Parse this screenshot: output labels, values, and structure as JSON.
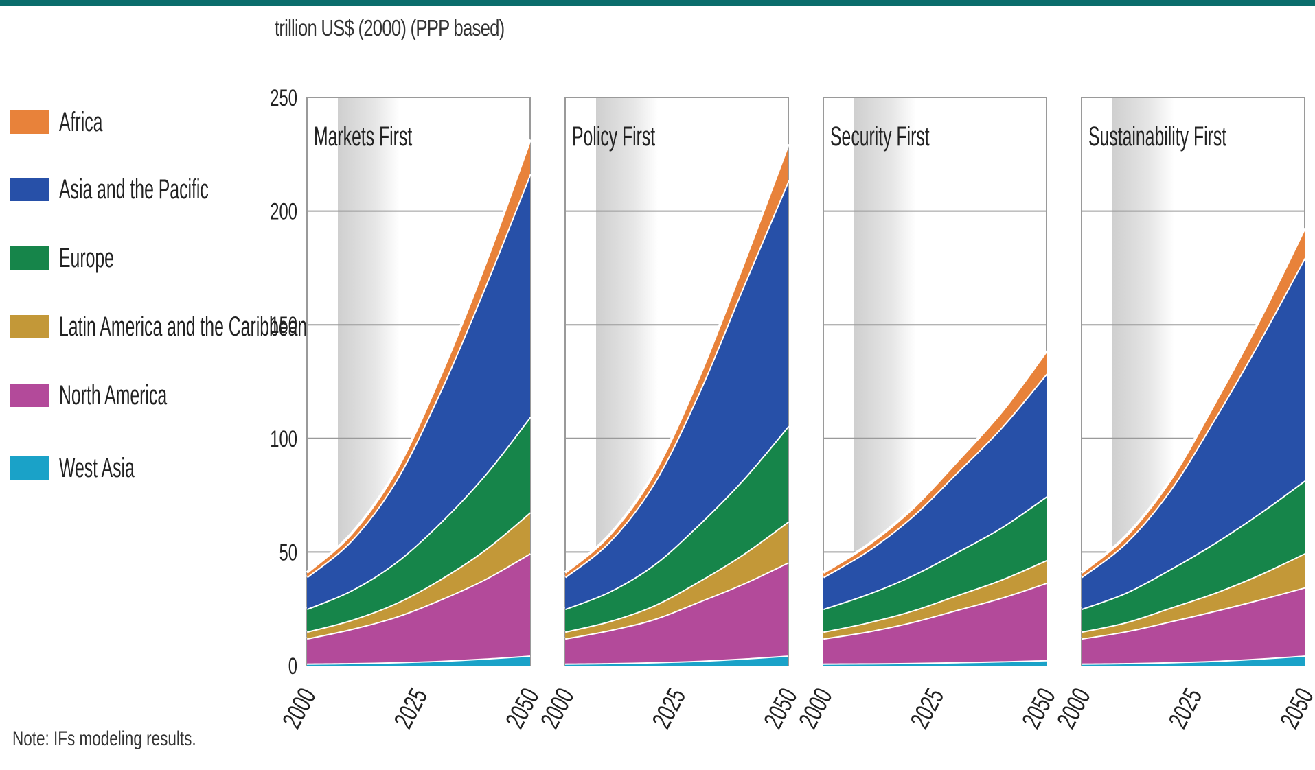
{
  "header": {
    "ylabel": "trillion US$ (2000) (PPP based)"
  },
  "legend": {
    "items": [
      {
        "label": "Africa",
        "color": "#e8823a"
      },
      {
        "label": "Asia and the Pacific",
        "color": "#2750a8"
      },
      {
        "label": "Europe",
        "color": "#16854a"
      },
      {
        "label": "Latin America and the Caribbean",
        "color": "#c39838"
      },
      {
        "label": "North America",
        "color": "#b34a9a"
      },
      {
        "label": "West Asia",
        "color": "#1aa2c8"
      }
    ]
  },
  "note": "Note: IFs modeling results.",
  "chart_data": [
    {
      "type": "area",
      "title": "Markets First",
      "x": [
        2000,
        2010,
        2020,
        2030,
        2040,
        2050
      ],
      "ylim": [
        0,
        250
      ],
      "yticks": [
        0,
        50,
        100,
        150,
        200,
        250
      ],
      "xticks": [
        "2000",
        "2025",
        "2050"
      ],
      "series": [
        {
          "name": "West Asia",
          "values": [
            1,
            1.2,
            1.6,
            2.2,
            3.2,
            4.5
          ]
        },
        {
          "name": "North America",
          "values": [
            11,
            15,
            20,
            27,
            35,
            45
          ]
        },
        {
          "name": "Latin America and the Caribbean",
          "values": [
            3,
            4,
            6,
            9,
            13,
            18
          ]
        },
        {
          "name": "Europe",
          "values": [
            10,
            13,
            18,
            25,
            33,
            42
          ]
        },
        {
          "name": "Asia and the Pacific",
          "values": [
            14,
            22,
            36,
            58,
            83,
            107
          ]
        },
        {
          "name": "Africa",
          "values": [
            2,
            3,
            4.5,
            7,
            10,
            15
          ]
        }
      ]
    },
    {
      "type": "area",
      "title": "Policy First",
      "x": [
        2000,
        2010,
        2020,
        2030,
        2040,
        2050
      ],
      "ylim": [
        0,
        250
      ],
      "yticks": [
        0,
        50,
        100,
        150,
        200,
        250
      ],
      "xticks": [
        "2000",
        "2025",
        "2050"
      ],
      "series": [
        {
          "name": "West Asia",
          "values": [
            1,
            1.2,
            1.6,
            2.2,
            3.2,
            4.5
          ]
        },
        {
          "name": "North America",
          "values": [
            11,
            14.5,
            19,
            26,
            33,
            41
          ]
        },
        {
          "name": "Latin America and the Caribbean",
          "values": [
            3,
            4,
            6,
            9,
            13,
            18
          ]
        },
        {
          "name": "Europe",
          "values": [
            10,
            13,
            18,
            25,
            33,
            42
          ]
        },
        {
          "name": "Asia and the Pacific",
          "values": [
            14,
            22,
            36,
            58,
            85,
            108
          ]
        },
        {
          "name": "Africa",
          "values": [
            2,
            3,
            4.5,
            7,
            10,
            16
          ]
        }
      ]
    },
    {
      "type": "area",
      "title": "Security First",
      "x": [
        2000,
        2010,
        2020,
        2030,
        2040,
        2050
      ],
      "ylim": [
        0,
        250
      ],
      "yticks": [
        0,
        50,
        100,
        150,
        200,
        250
      ],
      "xticks": [
        "2000",
        "2025",
        "2050"
      ],
      "series": [
        {
          "name": "West Asia",
          "values": [
            1,
            1.1,
            1.3,
            1.6,
            2,
            2.5
          ]
        },
        {
          "name": "North America",
          "values": [
            11,
            14,
            18,
            23,
            28,
            34
          ]
        },
        {
          "name": "Latin America and the Caribbean",
          "values": [
            3,
            4,
            5,
            6.5,
            8,
            10
          ]
        },
        {
          "name": "Europe",
          "values": [
            10,
            12.5,
            15.5,
            19,
            23,
            28
          ]
        },
        {
          "name": "Asia and the Pacific",
          "values": [
            14,
            19,
            26,
            35,
            44,
            54
          ]
        },
        {
          "name": "Africa",
          "values": [
            2,
            2.6,
            3.5,
            5,
            7,
            10
          ]
        }
      ]
    },
    {
      "type": "area",
      "title": "Sustainability First",
      "x": [
        2000,
        2010,
        2020,
        2030,
        2040,
        2050
      ],
      "ylim": [
        0,
        250
      ],
      "yticks": [
        0,
        50,
        100,
        150,
        200,
        250
      ],
      "xticks": [
        "2000",
        "2025",
        "2050"
      ],
      "series": [
        {
          "name": "West Asia",
          "values": [
            1,
            1.2,
            1.6,
            2.2,
            3.2,
            4.5
          ]
        },
        {
          "name": "North America",
          "values": [
            11,
            14,
            18,
            22,
            26,
            30
          ]
        },
        {
          "name": "Latin America and the Caribbean",
          "values": [
            3,
            4,
            6,
            8,
            11,
            15
          ]
        },
        {
          "name": "Europe",
          "values": [
            10,
            13,
            17,
            22,
            27,
            32
          ]
        },
        {
          "name": "Asia and the Pacific",
          "values": [
            14,
            22,
            35,
            55,
            76,
            98
          ]
        },
        {
          "name": "Africa",
          "values": [
            2,
            3,
            4.5,
            7,
            9.5,
            13
          ]
        }
      ]
    }
  ]
}
